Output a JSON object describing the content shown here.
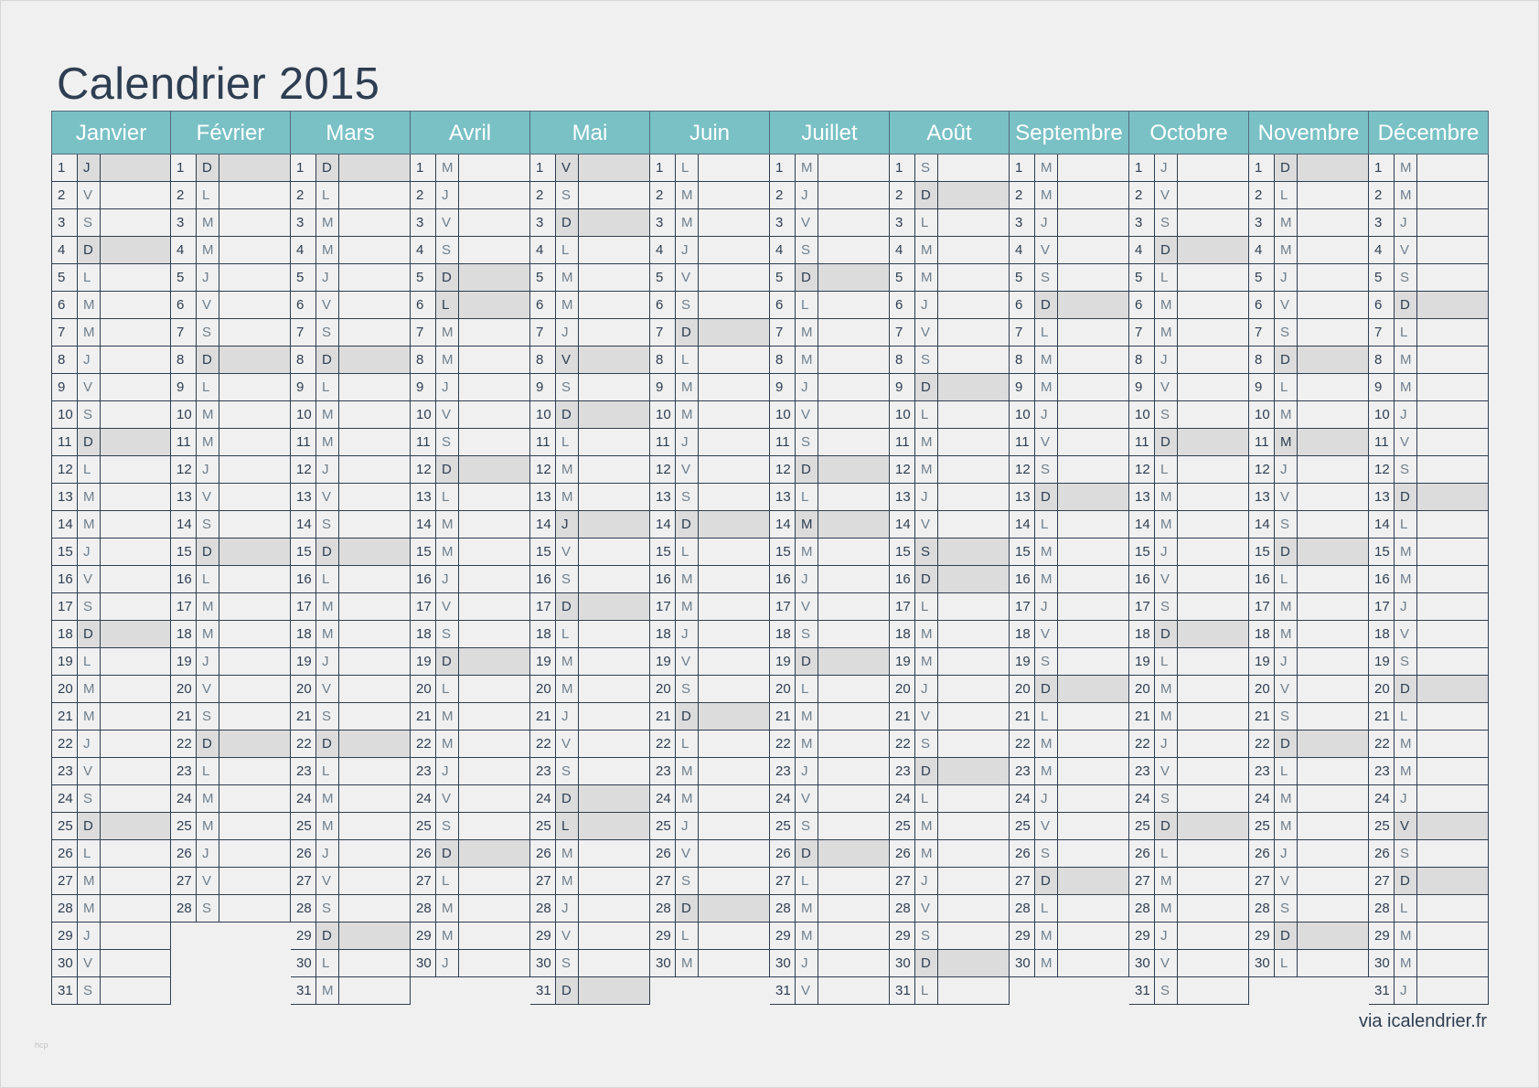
{
  "title": "Calendrier 2015",
  "credit": "via icalendrier.fr",
  "watermark": "hcp",
  "colors": {
    "header_bg": "#79c1c5",
    "weekend_bg": "#dcdcdc",
    "title": "#2e3e52",
    "border": "#2e3e52"
  },
  "weekend_letters": [
    "D"
  ],
  "months": [
    {
      "name": "Janvier",
      "days": [
        "J",
        "V",
        "S",
        "D",
        "L",
        "M",
        "M",
        "J",
        "V",
        "S",
        "D",
        "L",
        "M",
        "M",
        "J",
        "V",
        "S",
        "D",
        "L",
        "M",
        "M",
        "J",
        "V",
        "S",
        "D",
        "L",
        "M",
        "M",
        "J",
        "V",
        "S"
      ]
    },
    {
      "name": "Février",
      "days": [
        "D",
        "L",
        "M",
        "M",
        "J",
        "V",
        "S",
        "D",
        "L",
        "M",
        "M",
        "J",
        "V",
        "S",
        "D",
        "L",
        "M",
        "M",
        "J",
        "V",
        "S",
        "D",
        "L",
        "M",
        "M",
        "J",
        "V",
        "S"
      ]
    },
    {
      "name": "Mars",
      "days": [
        "D",
        "L",
        "M",
        "M",
        "J",
        "V",
        "S",
        "D",
        "L",
        "M",
        "M",
        "J",
        "V",
        "S",
        "D",
        "L",
        "M",
        "M",
        "J",
        "V",
        "S",
        "D",
        "L",
        "M",
        "M",
        "J",
        "V",
        "S",
        "D",
        "L",
        "M"
      ]
    },
    {
      "name": "Avril",
      "days": [
        "M",
        "J",
        "V",
        "S",
        "D",
        "L",
        "M",
        "M",
        "J",
        "V",
        "S",
        "D",
        "L",
        "M",
        "M",
        "J",
        "V",
        "S",
        "D",
        "L",
        "M",
        "M",
        "J",
        "V",
        "S",
        "D",
        "L",
        "M",
        "M",
        "J"
      ]
    },
    {
      "name": "Mai",
      "days": [
        "V",
        "S",
        "D",
        "L",
        "M",
        "M",
        "J",
        "V",
        "S",
        "D",
        "L",
        "M",
        "M",
        "J",
        "V",
        "S",
        "D",
        "L",
        "M",
        "M",
        "J",
        "V",
        "S",
        "D",
        "L",
        "M",
        "M",
        "J",
        "V",
        "S",
        "D"
      ]
    },
    {
      "name": "Juin",
      "days": [
        "L",
        "M",
        "M",
        "J",
        "V",
        "S",
        "D",
        "L",
        "M",
        "M",
        "J",
        "V",
        "S",
        "D",
        "L",
        "M",
        "M",
        "J",
        "V",
        "S",
        "D",
        "L",
        "M",
        "M",
        "J",
        "V",
        "S",
        "D",
        "L",
        "M"
      ]
    },
    {
      "name": "Juillet",
      "days": [
        "M",
        "J",
        "V",
        "S",
        "D",
        "L",
        "M",
        "M",
        "J",
        "V",
        "S",
        "D",
        "L",
        "M",
        "M",
        "J",
        "V",
        "S",
        "D",
        "L",
        "M",
        "M",
        "J",
        "V",
        "S",
        "D",
        "L",
        "M",
        "M",
        "J",
        "V"
      ]
    },
    {
      "name": "Août",
      "days": [
        "S",
        "D",
        "L",
        "M",
        "M",
        "J",
        "V",
        "S",
        "D",
        "L",
        "M",
        "M",
        "J",
        "V",
        "S",
        "D",
        "L",
        "M",
        "M",
        "J",
        "V",
        "S",
        "D",
        "L",
        "M",
        "M",
        "J",
        "V",
        "S",
        "D",
        "L"
      ]
    },
    {
      "name": "Septembre",
      "days": [
        "M",
        "M",
        "J",
        "V",
        "S",
        "D",
        "L",
        "M",
        "M",
        "J",
        "V",
        "S",
        "D",
        "L",
        "M",
        "M",
        "J",
        "V",
        "S",
        "D",
        "L",
        "M",
        "M",
        "J",
        "V",
        "S",
        "D",
        "L",
        "M",
        "M"
      ]
    },
    {
      "name": "Octobre",
      "days": [
        "J",
        "V",
        "S",
        "D",
        "L",
        "M",
        "M",
        "J",
        "V",
        "S",
        "D",
        "L",
        "M",
        "M",
        "J",
        "V",
        "S",
        "D",
        "L",
        "M",
        "M",
        "J",
        "V",
        "S",
        "D",
        "L",
        "M",
        "M",
        "J",
        "V",
        "S"
      ]
    },
    {
      "name": "Novembre",
      "days": [
        "D",
        "L",
        "M",
        "M",
        "J",
        "V",
        "S",
        "D",
        "L",
        "M",
        "M",
        "J",
        "V",
        "S",
        "D",
        "L",
        "M",
        "M",
        "J",
        "V",
        "S",
        "D",
        "L",
        "M",
        "M",
        "J",
        "V",
        "S",
        "D",
        "L"
      ]
    },
    {
      "name": "Décembre",
      "days": [
        "M",
        "M",
        "J",
        "V",
        "S",
        "D",
        "L",
        "M",
        "M",
        "J",
        "V",
        "S",
        "D",
        "L",
        "M",
        "M",
        "J",
        "V",
        "S",
        "D",
        "L",
        "M",
        "M",
        "J",
        "V",
        "S",
        "D",
        "L",
        "M",
        "M",
        "J"
      ]
    }
  ],
  "highlights": [
    {
      "month": "Janvier",
      "day": 1
    },
    {
      "month": "Avril",
      "day": 6
    },
    {
      "month": "Mai",
      "day": 1
    },
    {
      "month": "Mai",
      "day": 8
    },
    {
      "month": "Mai",
      "day": 14
    },
    {
      "month": "Mai",
      "day": 25
    },
    {
      "month": "Juillet",
      "day": 14
    },
    {
      "month": "Août",
      "day": 15
    },
    {
      "month": "Novembre",
      "day": 11
    },
    {
      "month": "Décembre",
      "day": 25
    }
  ]
}
